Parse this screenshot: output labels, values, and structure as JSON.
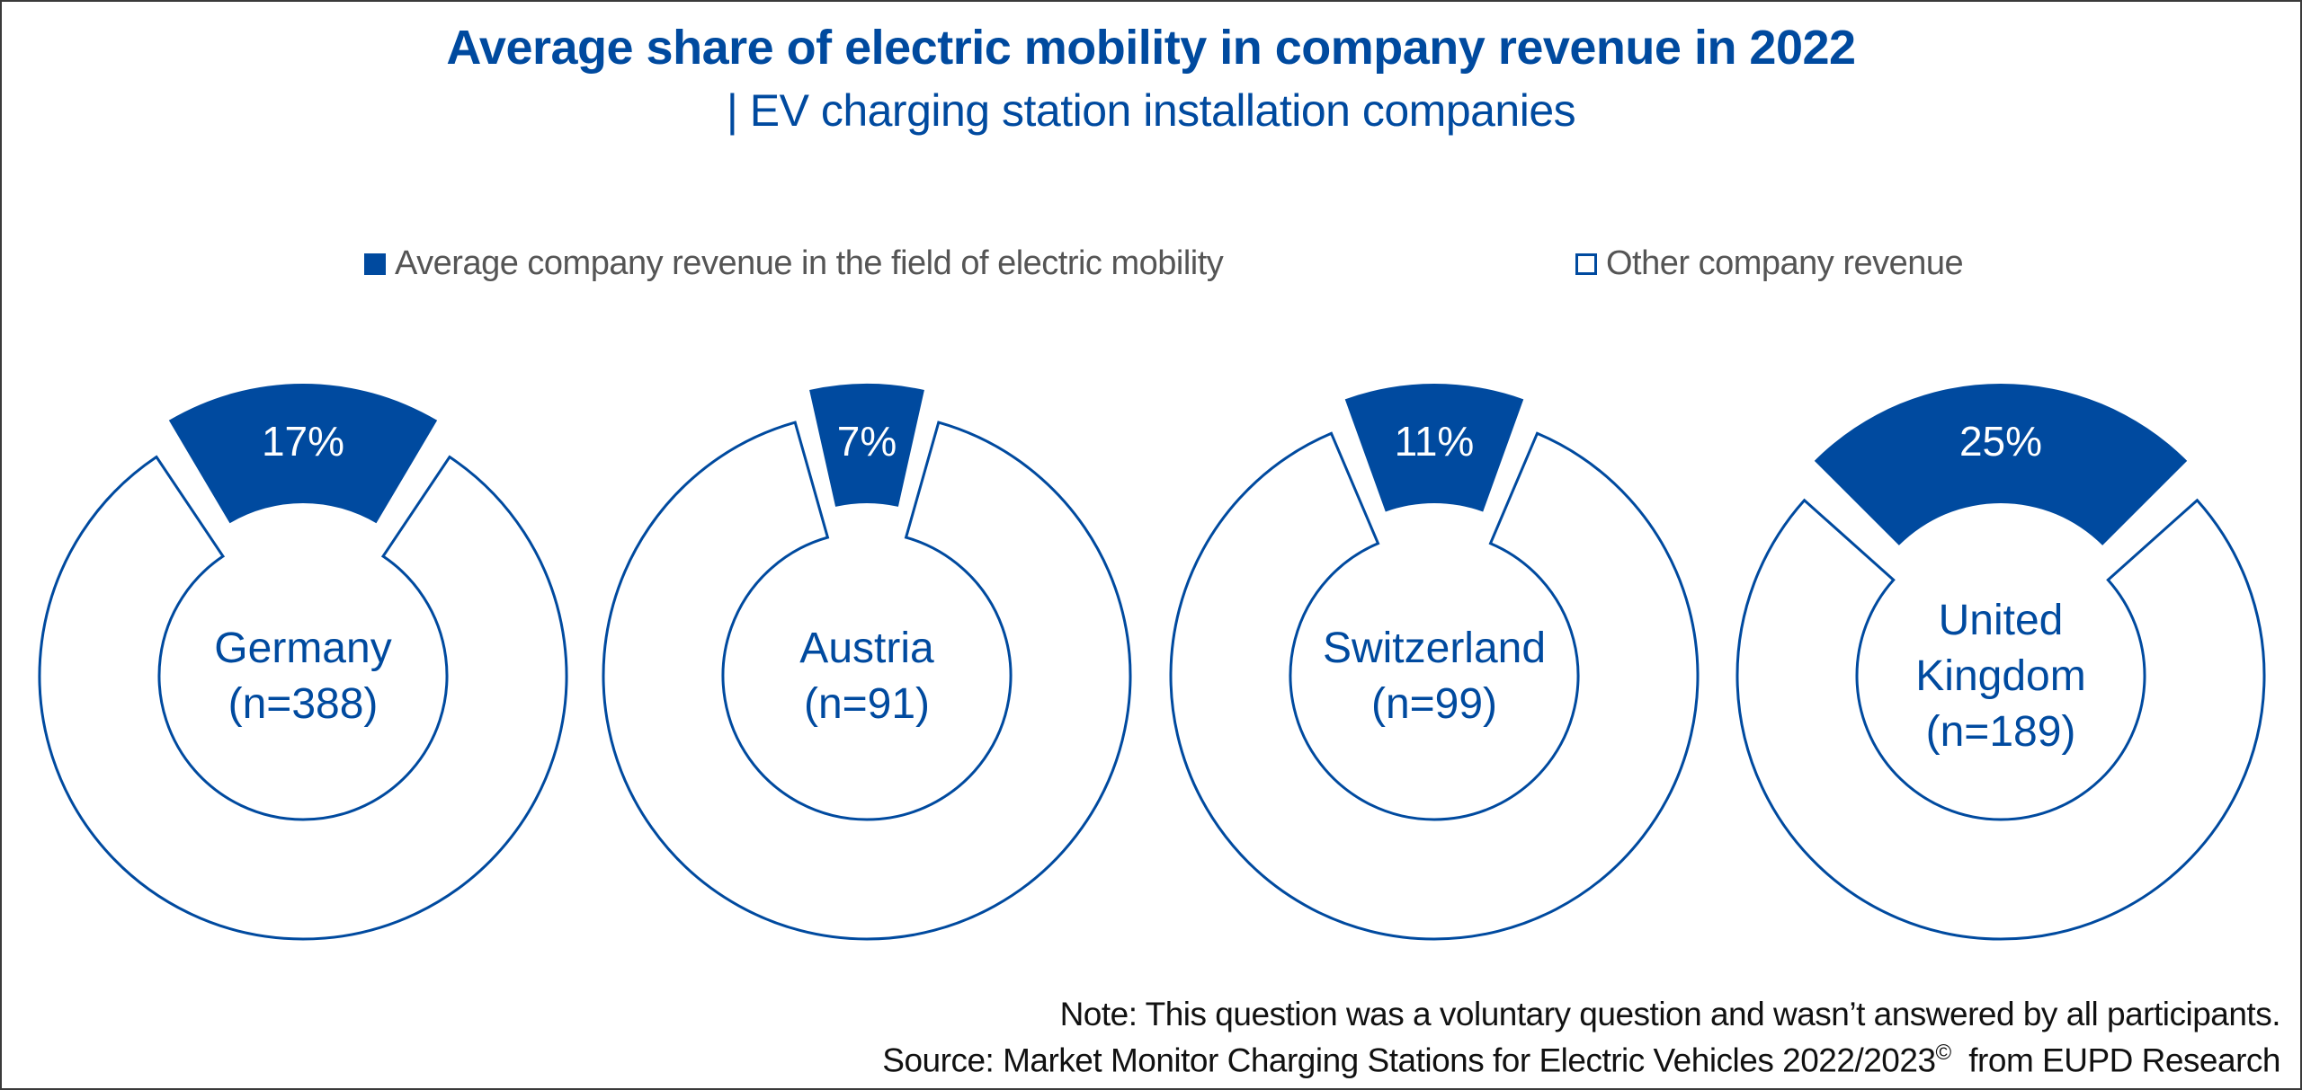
{
  "title": "Average share of electric mobility in company revenue in 2022",
  "subtitle": "| EV charging station installation companies",
  "legend": {
    "items": [
      {
        "label": "Average company revenue in the field of electric mobility",
        "style": "filled",
        "color": "#004a9f"
      },
      {
        "label": "Other company revenue",
        "style": "outline",
        "color": "#004a9f"
      }
    ]
  },
  "footer": {
    "note": "Note: This question was a voluntary question and wasn’t answered by all participants.",
    "source_prefix": "Source: Market Monitor Charging Stations for Electric Vehicles 2022/2023",
    "source_mark": "©",
    "source_suffix": "  from EUPD Research"
  },
  "colors": {
    "accent": "#004a9f",
    "background": "#ffffff",
    "text": "#111111",
    "legend_text": "#555555"
  },
  "chart_data": {
    "type": "pie",
    "variant": "donut (exploded highlight slice)",
    "title": "Average share of electric mobility in company revenue in 2022",
    "subtitle": "| EV charging station installation companies",
    "legend": [
      "Average company revenue in the field of electric mobility",
      "Other company revenue"
    ],
    "legend_position": "top",
    "series": [
      {
        "name": "Germany",
        "label_lines": [
          "Germany",
          "(n=388)"
        ],
        "n": 388,
        "values": [
          17,
          83
        ],
        "value_label": "17%"
      },
      {
        "name": "Austria",
        "label_lines": [
          "Austria",
          "(n=91)"
        ],
        "n": 91,
        "values": [
          7,
          93
        ],
        "value_label": "7%"
      },
      {
        "name": "Switzerland",
        "label_lines": [
          "Switzerland",
          "(n=99)"
        ],
        "n": 99,
        "values": [
          11,
          89
        ],
        "value_label": "11%"
      },
      {
        "name": "United Kingdom",
        "label_lines": [
          "United",
          "Kingdom",
          "(n=189)"
        ],
        "n": 189,
        "values": [
          25,
          75
        ],
        "value_label": "25%"
      }
    ],
    "categories": [
      "Average company revenue in the field of electric mobility",
      "Other company revenue"
    ],
    "unit": "%"
  }
}
